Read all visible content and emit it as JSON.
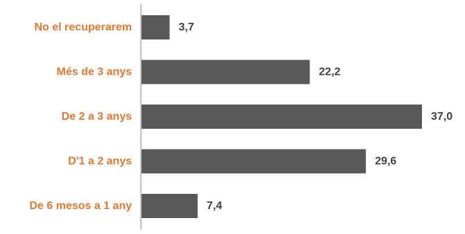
{
  "colors": {
    "bar": "#595959",
    "category_label": "#E8772E",
    "value_label": "#404040",
    "axis": "#808080"
  },
  "chart_data": {
    "type": "bar",
    "orientation": "horizontal",
    "title": "",
    "xlabel": "",
    "ylabel": "",
    "categories": [
      "No el recuperarem",
      "Més de 3 anys",
      "De 2 a 3 anys",
      "D'1 a 2 anys",
      "De 6 mesos a 1 any"
    ],
    "values": [
      3.7,
      22.2,
      37.0,
      29.6,
      7.4
    ],
    "value_labels": [
      "3,7",
      "22,2",
      "37,0",
      "29,6",
      "7,4"
    ],
    "xlim": [
      0,
      37.0
    ],
    "grid": false,
    "legend": "none"
  }
}
